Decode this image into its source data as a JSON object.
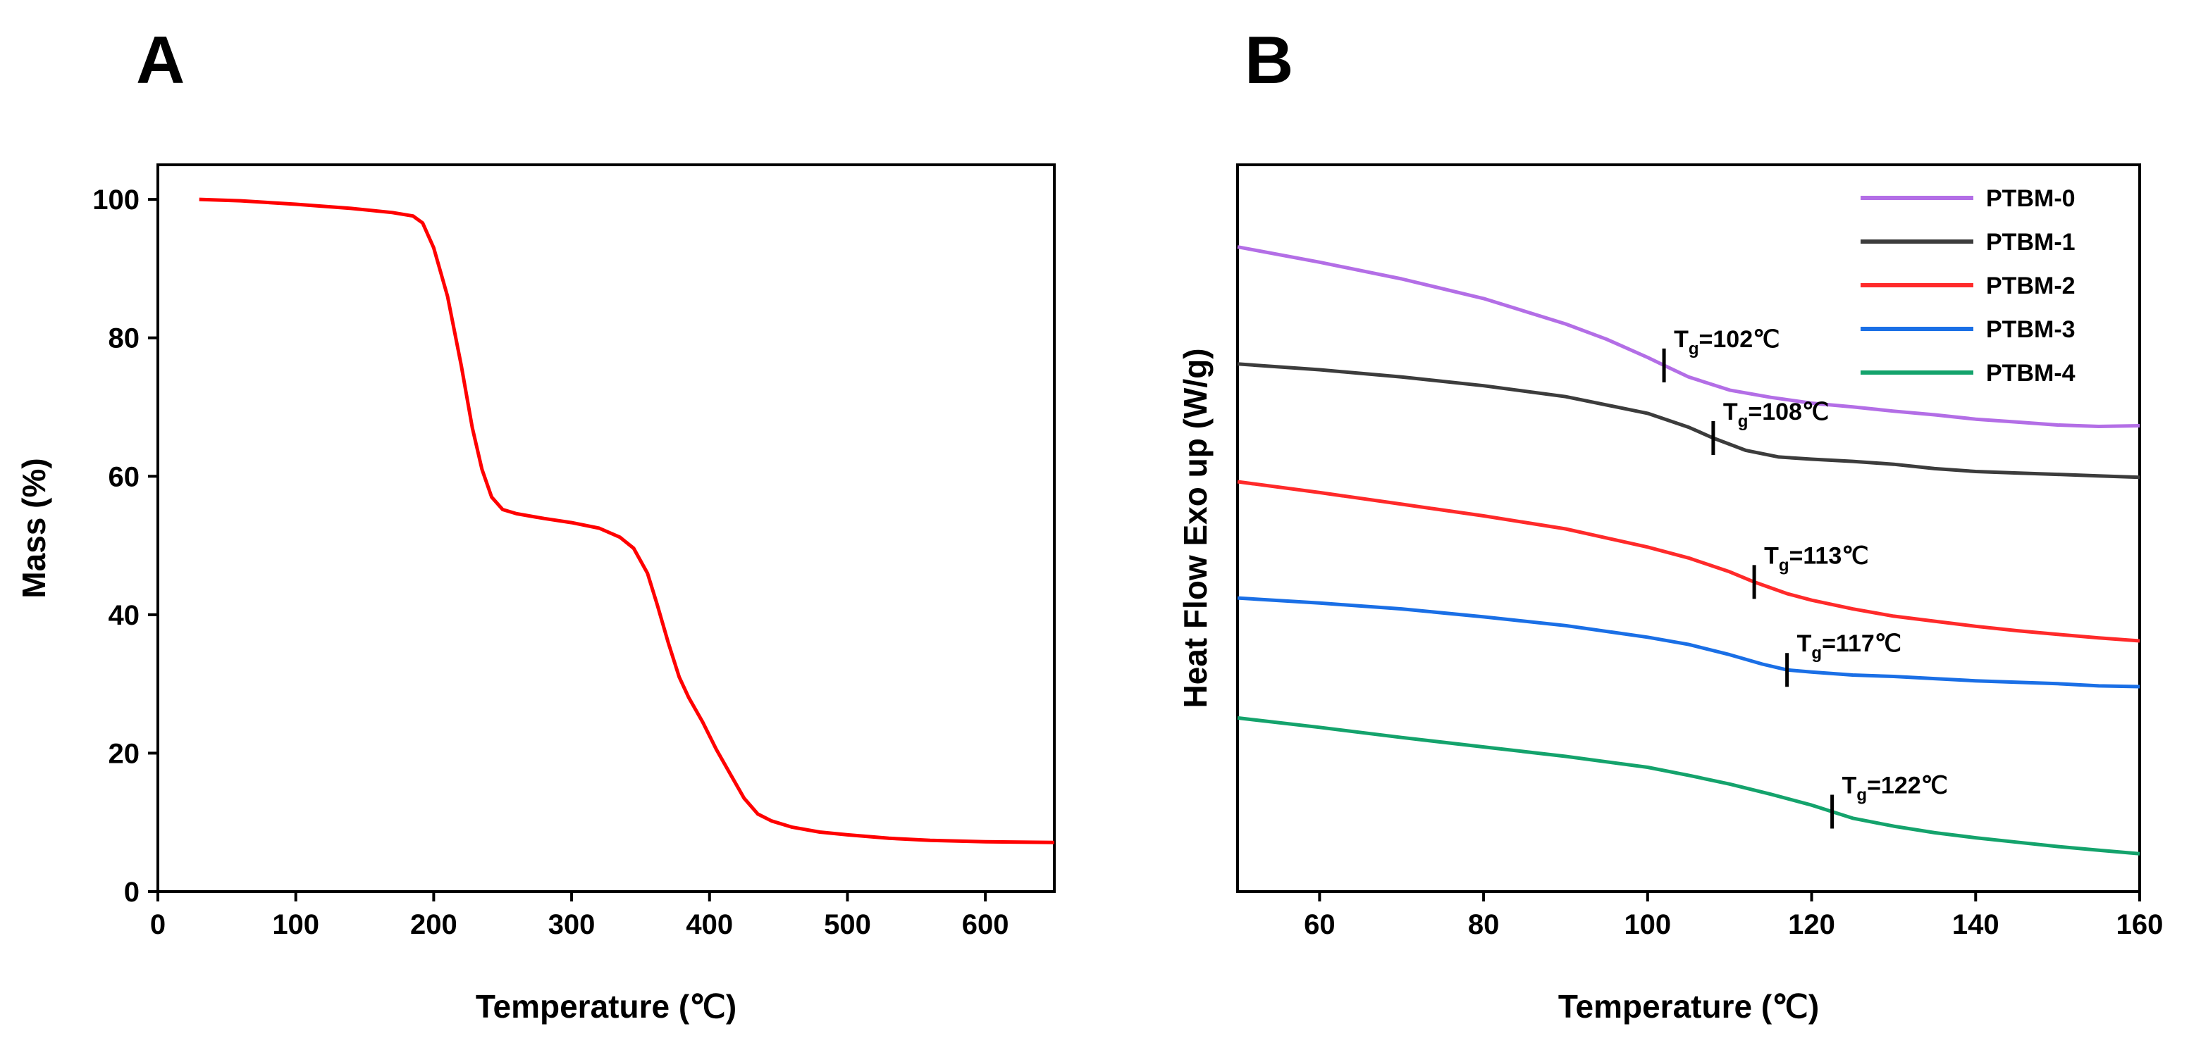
{
  "panels": [
    {
      "label": "A",
      "chart_data": {
        "type": "line",
        "xlabel": "Temperature (℃)",
        "ylabel": "Mass (%)",
        "xlim": [
          0,
          650
        ],
        "ylim": [
          0,
          105
        ],
        "xticks": [
          0,
          100,
          200,
          300,
          400,
          500,
          600
        ],
        "yticks": [
          0,
          20,
          40,
          60,
          80,
          100
        ],
        "grid": false,
        "series": [
          {
            "color": "#ff0000",
            "x": [
              30,
              60,
              100,
              140,
              170,
              185,
              192,
              200,
              210,
              220,
              228,
              235,
              242,
              250,
              260,
              280,
              300,
              320,
              335,
              345,
              355,
              362,
              370,
              378,
              385,
              395,
              405,
              415,
              425,
              435,
              445,
              460,
              480,
              500,
              530,
              560,
              600,
              650
            ],
            "y": [
              100,
              99.8,
              99.3,
              98.7,
              98.1,
              97.6,
              96.6,
              93,
              86,
              76,
              67,
              61,
              57,
              55.2,
              54.6,
              53.9,
              53.3,
              52.5,
              51.2,
              49.6,
              46,
              41.5,
              36,
              31,
              28,
              24.5,
              20.5,
              17,
              13.5,
              11.2,
              10.2,
              9.3,
              8.6,
              8.2,
              7.7,
              7.4,
              7.2,
              7.1
            ]
          }
        ]
      }
    },
    {
      "label": "B",
      "chart_data": {
        "type": "line",
        "xlabel": "Temperature (℃)",
        "ylabel": "Heat Flow Exo up (W/g)",
        "xlim": [
          50,
          160
        ],
        "ylim": [
          0,
          100
        ],
        "xticks": [
          60,
          80,
          100,
          120,
          140,
          160
        ],
        "grid": false,
        "legend_position": "top-right",
        "series": [
          {
            "name": "PTBM-0",
            "color": "#b36ee6",
            "tg": "102",
            "tg_x": 102,
            "x": [
              50,
              60,
              70,
              80,
              90,
              95,
              100,
              102,
              105,
              110,
              115,
              120,
              125,
              130,
              135,
              140,
              145,
              150,
              155,
              160
            ],
            "y": [
              88.7,
              86.6,
              84.3,
              81.6,
              78.1,
              76.0,
              73.5,
              72.4,
              70.8,
              69.0,
              68.0,
              67.2,
              66.7,
              66.1,
              65.6,
              65.0,
              64.6,
              64.2,
              64.0,
              64.1
            ]
          },
          {
            "name": "PTBM-1",
            "color": "#3c3c3c",
            "tg": "108",
            "tg_x": 108,
            "x": [
              50,
              60,
              70,
              80,
              90,
              100,
              105,
              108,
              112,
              116,
              120,
              125,
              130,
              135,
              140,
              145,
              150,
              155,
              160
            ],
            "y": [
              72.6,
              71.8,
              70.8,
              69.6,
              68.1,
              65.8,
              63.9,
              62.4,
              60.7,
              59.8,
              59.5,
              59.2,
              58.8,
              58.2,
              57.8,
              57.6,
              57.4,
              57.2,
              57.0
            ]
          },
          {
            "name": "PTBM-2",
            "color": "#ff2a2a",
            "tg": "113",
            "tg_x": 113,
            "x": [
              50,
              60,
              70,
              80,
              90,
              100,
              105,
              110,
              113,
              117,
              120,
              125,
              130,
              135,
              140,
              145,
              150,
              155,
              160
            ],
            "y": [
              56.4,
              54.9,
              53.3,
              51.7,
              49.9,
              47.4,
              45.9,
              44.0,
              42.6,
              41.0,
              40.1,
              38.9,
              37.9,
              37.2,
              36.5,
              35.9,
              35.4,
              34.9,
              34.5
            ]
          },
          {
            "name": "PTBM-3",
            "color": "#1a6fe6",
            "tg": "117",
            "tg_x": 117,
            "x": [
              50,
              60,
              70,
              80,
              90,
              100,
              105,
              110,
              114,
              117,
              120,
              125,
              130,
              135,
              140,
              145,
              150,
              155,
              160
            ],
            "y": [
              40.4,
              39.7,
              38.9,
              37.8,
              36.6,
              35.0,
              34.0,
              32.6,
              31.3,
              30.5,
              30.2,
              29.8,
              29.6,
              29.3,
              29.0,
              28.8,
              28.6,
              28.3,
              28.2
            ]
          },
          {
            "name": "PTBM-4",
            "color": "#14a36c",
            "tg": "122",
            "tg_x": 122.5,
            "x": [
              50,
              60,
              70,
              80,
              90,
              100,
              105,
              110,
              115,
              120,
              122.5,
              125,
              130,
              135,
              140,
              145,
              150,
              155,
              160
            ],
            "y": [
              23.9,
              22.6,
              21.2,
              19.9,
              18.6,
              17.1,
              16.0,
              14.8,
              13.4,
              11.9,
              11.0,
              10.1,
              9.0,
              8.1,
              7.4,
              6.8,
              6.2,
              5.7,
              5.2
            ]
          }
        ]
      }
    }
  ]
}
